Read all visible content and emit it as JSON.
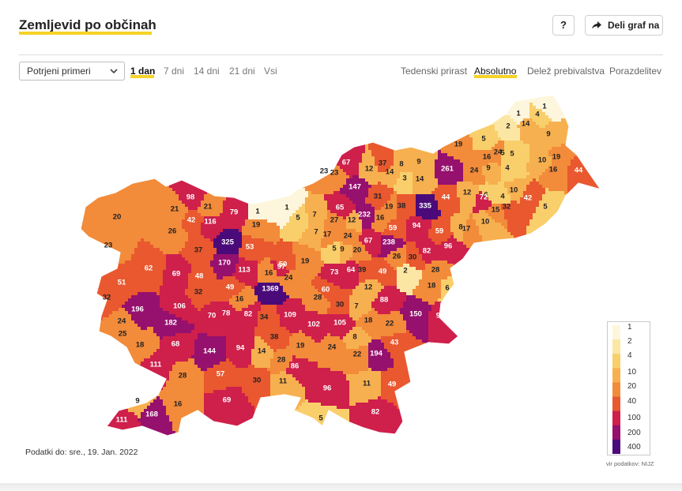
{
  "header": {
    "title": "Zemljevid po občinah",
    "help_label": "?",
    "share_label": "Deli graf na"
  },
  "controls": {
    "select_value": "Potrjeni primeri",
    "ranges": [
      "1 dan",
      "7 dni",
      "14 dni",
      "21 dni",
      "Vsi"
    ],
    "active_range": "1 dan",
    "views": [
      "Tedenski prirast",
      "Absolutno",
      "Delež prebivalstva",
      "Porazdelitev"
    ],
    "active_view": "Absolutno"
  },
  "legend": {
    "ticks": [
      "1",
      "2",
      "4",
      "10",
      "20",
      "40",
      "100",
      "200",
      "400"
    ],
    "colors": [
      "#fdf6dc",
      "#fbe7a3",
      "#f9cf6b",
      "#f7b04f",
      "#f28b3a",
      "#e9582f",
      "#cf1f4b",
      "#96106e",
      "#4b0a7a"
    ]
  },
  "source": "vir podatkov: NIJZ",
  "footer": {
    "date_text": "Podatki do: sre., 19. Jan. 2022"
  },
  "map": {
    "municipality_values": [
      1,
      4,
      1,
      2,
      14,
      9,
      19,
      5,
      5,
      24,
      16,
      5,
      9,
      4,
      10,
      19,
      10,
      16,
      44,
      261,
      24,
      12,
      6,
      72,
      4,
      15,
      42,
      32,
      5,
      10,
      17,
      8,
      96,
      59,
      335,
      44,
      12,
      14,
      9,
      37,
      8,
      3,
      14,
      67,
      147,
      23,
      23,
      31,
      19,
      38,
      232,
      16,
      65,
      27,
      12,
      7,
      7,
      1,
      1,
      5,
      17,
      24,
      59,
      94,
      238,
      20,
      9,
      5,
      67,
      26,
      30,
      19,
      50,
      82,
      2,
      18,
      28,
      49,
      39,
      64,
      73,
      97,
      24,
      16,
      1369,
      60,
      28,
      12,
      88,
      6,
      30,
      98,
      21,
      21,
      79,
      116,
      42,
      26,
      20,
      23,
      19,
      325,
      53,
      37,
      170,
      113,
      62,
      51,
      69,
      48,
      32,
      49,
      16,
      106,
      196,
      32,
      24,
      182,
      70,
      78,
      82,
      34,
      109,
      102,
      105,
      7,
      18,
      22,
      150,
      96,
      25,
      18,
      68,
      144,
      94,
      38,
      19,
      8,
      43,
      22,
      194,
      24,
      14,
      86,
      28,
      57,
      111,
      30,
      11,
      11,
      49,
      96,
      69,
      28,
      9,
      16,
      168,
      111,
      5,
      82
    ]
  }
}
